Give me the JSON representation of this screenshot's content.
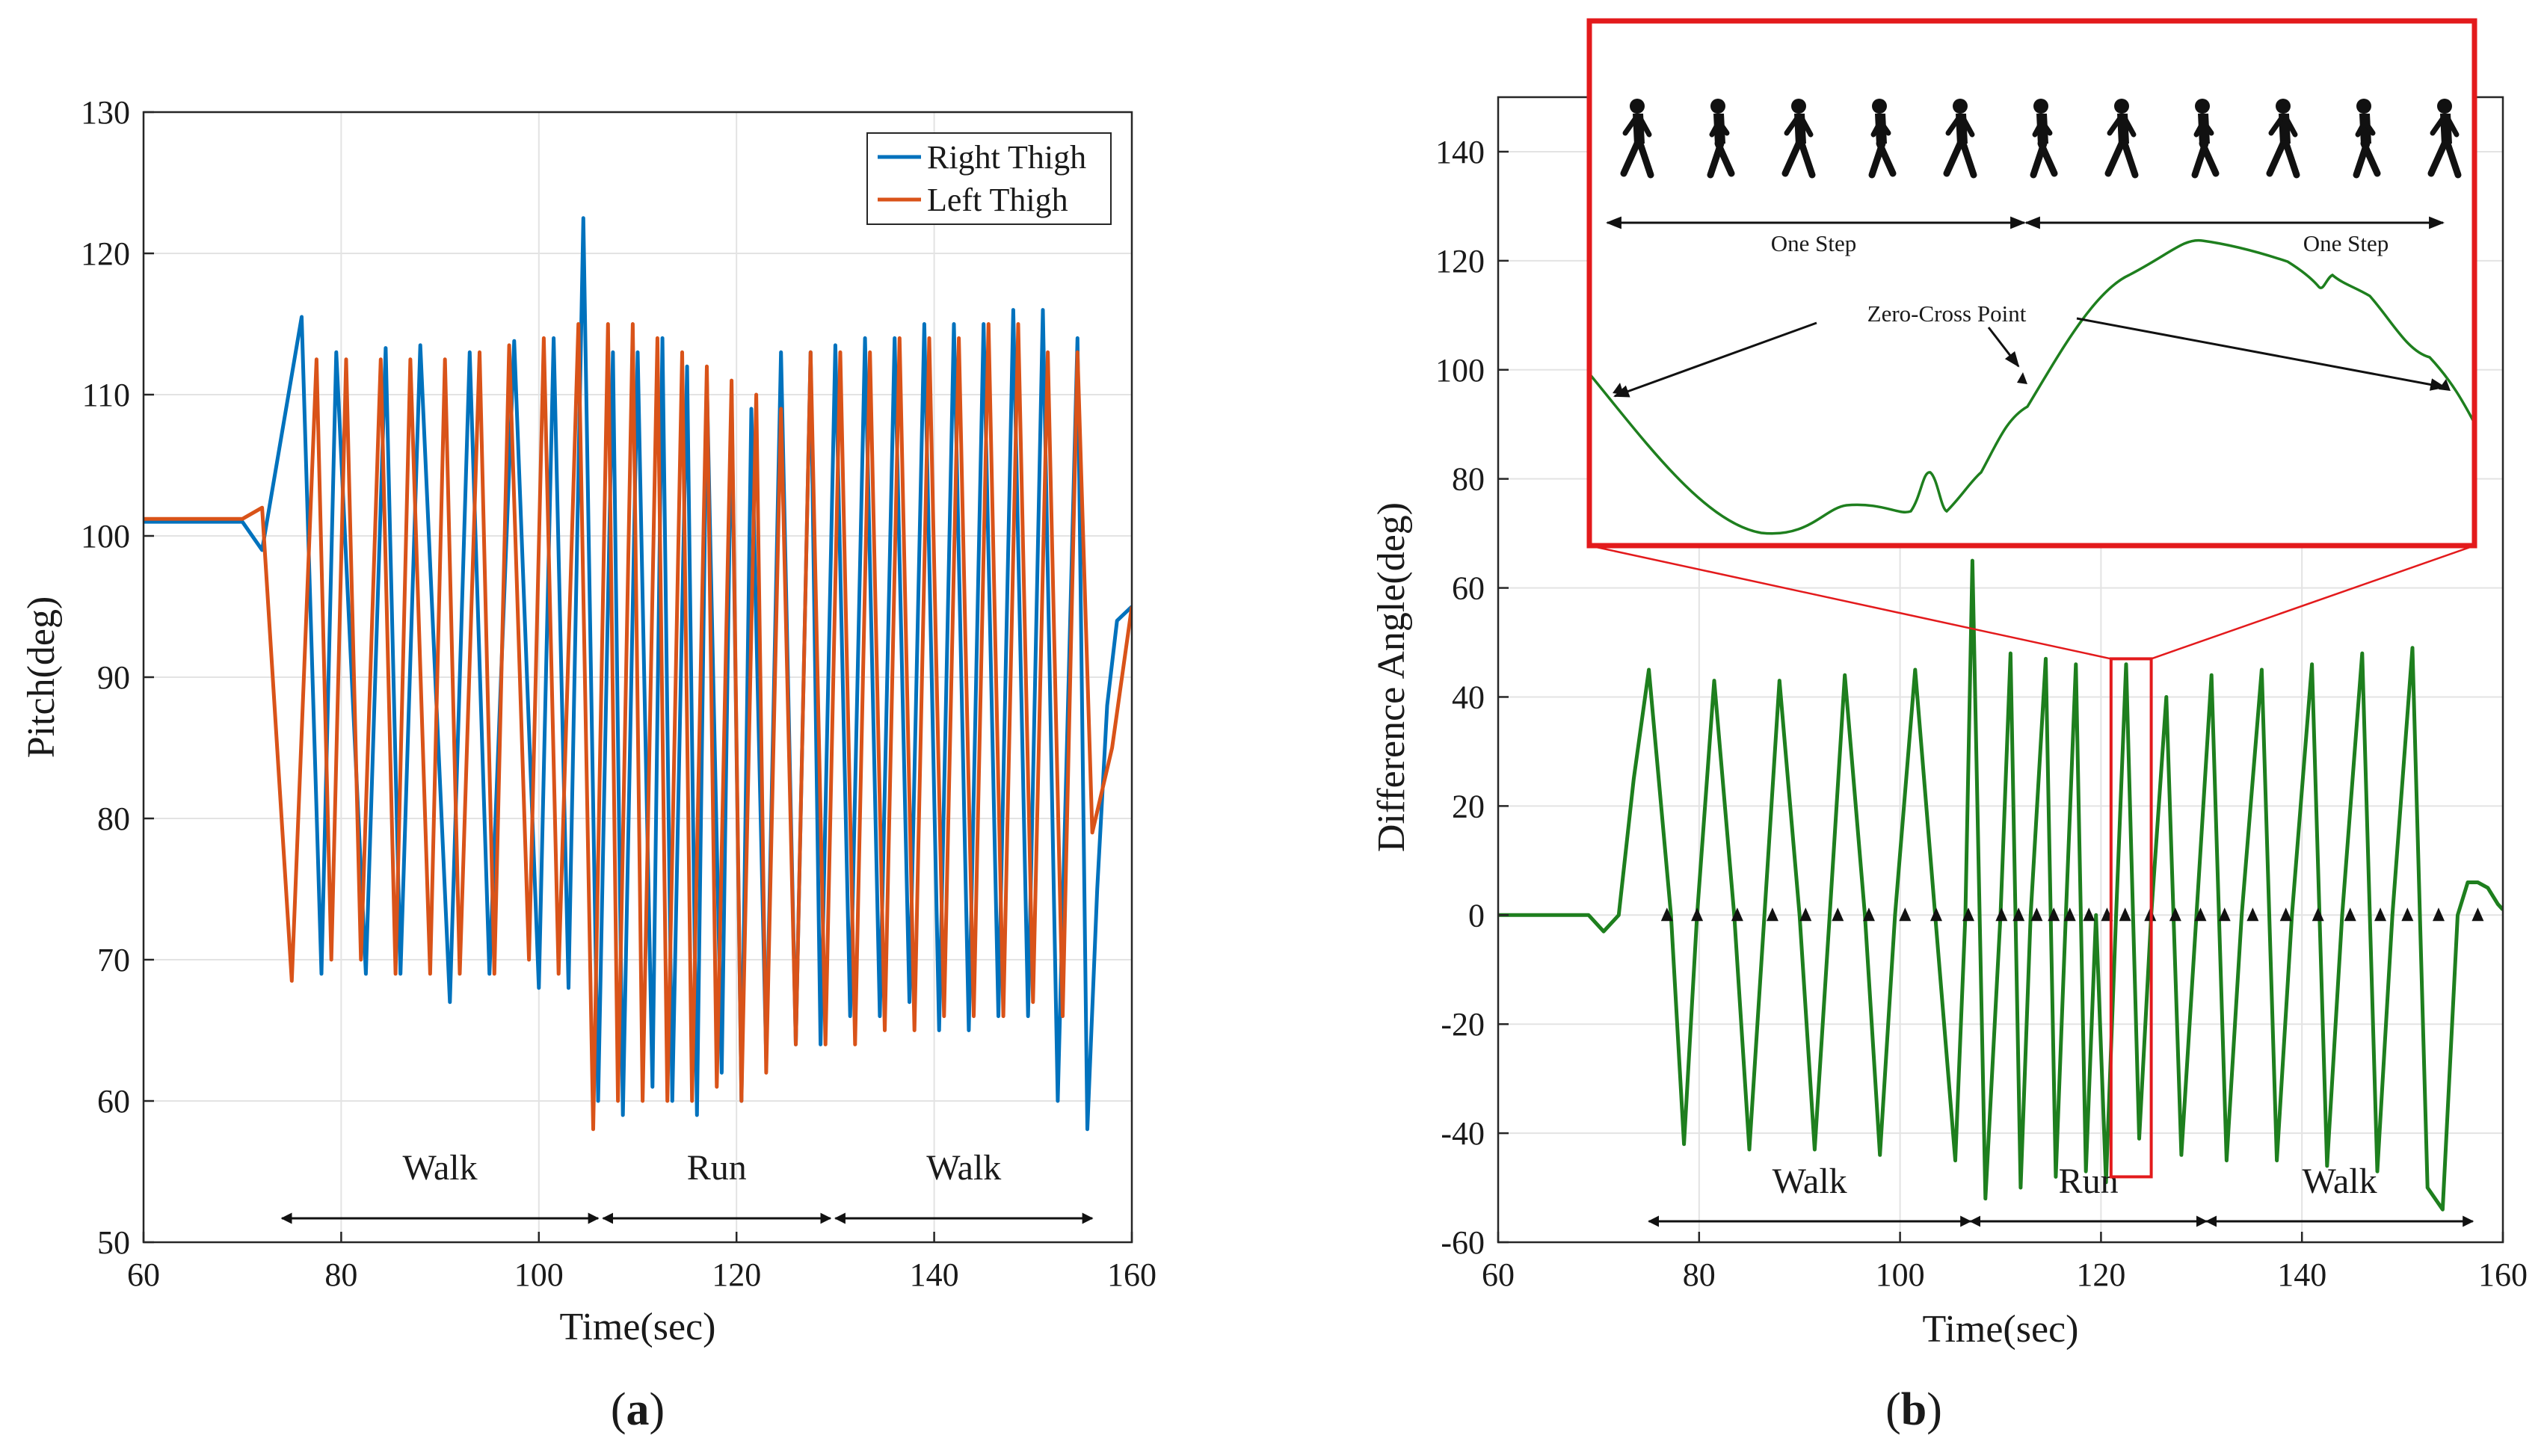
{
  "chart_data": [
    {
      "id": "a",
      "type": "line",
      "panel_label": {
        "open": "(",
        "letter": "a",
        "close": ")"
      },
      "xlabel": "Time(sec)",
      "ylabel": "Pitch(deg)",
      "xlim": [
        60,
        160
      ],
      "ylim": [
        50,
        130
      ],
      "xticks": [
        "60",
        "80",
        "100",
        "120",
        "140",
        "160"
      ],
      "yticks": [
        "50",
        "60",
        "70",
        "80",
        "90",
        "100",
        "110",
        "120",
        "130"
      ],
      "grid": true,
      "legend_position": "top-right",
      "series": [
        {
          "name": "Right Thigh",
          "color": "#0072BD",
          "x": [
            60,
            70,
            72,
            76,
            78,
            79.5,
            82.5,
            84.5,
            86,
            88,
            91,
            93,
            95,
            97.5,
            100,
            101.5,
            103,
            104.5,
            106,
            107.5,
            108.5,
            110,
            111.5,
            112.5,
            113.5,
            115,
            116,
            117,
            118.5,
            119.5,
            120.5,
            121.5,
            123,
            124.5,
            126,
            127.5,
            128.5,
            130,
            131.5,
            133,
            134.5,
            136,
            137.5,
            139,
            140.5,
            142,
            143.5,
            145,
            146.5,
            148,
            149.5,
            151,
            152.5,
            154.5,
            155.5,
            156.5,
            157.5,
            158.5,
            160
          ],
          "values": [
            101,
            101,
            99,
            115.5,
            69,
            113,
            69,
            113.3,
            69,
            113.5,
            67,
            113,
            69,
            113.8,
            68,
            114,
            68,
            122.5,
            60,
            113,
            59,
            113,
            61,
            114,
            60,
            112,
            59,
            111,
            62,
            110,
            60,
            109,
            63,
            113,
            64,
            113,
            64,
            113.5,
            66,
            114,
            66,
            114,
            67,
            115,
            65,
            115,
            65,
            115,
            66,
            116,
            66,
            116,
            60,
            114,
            58,
            75,
            88,
            94,
            95
          ]
        },
        {
          "name": "Left Thigh",
          "color": "#D95319",
          "x": [
            60,
            70,
            72,
            75,
            77.5,
            79,
            80.5,
            82,
            84,
            85.5,
            87,
            89,
            90.5,
            92,
            94,
            95.5,
            97,
            99,
            100.5,
            102,
            104,
            105.5,
            107,
            108,
            109.5,
            110.5,
            112,
            113,
            114.5,
            115.5,
            117,
            118,
            119.5,
            120.5,
            122,
            123,
            124.5,
            126,
            127.5,
            129,
            130.5,
            132,
            133.5,
            135,
            136.5,
            138,
            139.5,
            141,
            142.5,
            144,
            145.5,
            147,
            148.5,
            150,
            151.5,
            153,
            154.5,
            156,
            158,
            160
          ],
          "values": [
            101.2,
            101.2,
            102,
            68.5,
            112.5,
            70,
            112.5,
            70,
            112.5,
            69,
            112.5,
            69,
            112.5,
            69,
            113,
            69,
            113.5,
            70,
            114,
            69,
            115,
            58,
            115,
            60,
            115,
            60,
            114,
            60,
            113,
            60,
            112,
            61,
            111,
            60,
            110,
            62,
            109,
            64,
            113,
            64,
            113,
            64,
            113,
            65,
            114,
            65,
            114,
            66,
            114,
            66,
            115,
            66,
            115,
            67,
            113,
            66,
            113,
            79,
            85,
            95
          ]
        }
      ],
      "segments": [
        {
          "label": "Walk",
          "start": 74,
          "end": 106
        },
        {
          "label": "Run",
          "start": 106.5,
          "end": 129.5
        },
        {
          "label": "Walk",
          "start": 130,
          "end": 156
        }
      ]
    },
    {
      "id": "b",
      "type": "line",
      "panel_label": {
        "open": "(",
        "letter": "b",
        "close": ")"
      },
      "xlabel": "Time(sec)",
      "ylabel": "Difference Angle(deg)",
      "xlim": [
        60,
        160
      ],
      "ylim": [
        -60,
        150
      ],
      "xticks": [
        "60",
        "80",
        "100",
        "120",
        "140",
        "160"
      ],
      "yticks": [
        "-60",
        "-40",
        "-20",
        "0",
        "20",
        "40",
        "60",
        "80",
        "100",
        "120",
        "140"
      ],
      "grid": true,
      "series": [
        {
          "name": "Difference Angle",
          "color": "#1E7F1E",
          "x": [
            60,
            69,
            70.5,
            72,
            73.5,
            75,
            77.2,
            78.5,
            79.8,
            81.5,
            83.5,
            85,
            86.5,
            88,
            90,
            91.5,
            93,
            94.5,
            96.5,
            98,
            99.5,
            101.5,
            103.5,
            105.5,
            106.5,
            107.2,
            108.5,
            110,
            111,
            112,
            113,
            114.5,
            115.5,
            116.5,
            117.5,
            118.5,
            119.5,
            120.5,
            121.5,
            122.5,
            123.8,
            125,
            126.5,
            128,
            129.5,
            131,
            132.5,
            134,
            136,
            137.5,
            139,
            141,
            142.5,
            144,
            146,
            147.5,
            149,
            151,
            152.5,
            154,
            155.5,
            156.5,
            157.5,
            158.5,
            159.5,
            160
          ],
          "values": [
            0,
            0,
            -3,
            0,
            25,
            45,
            0,
            -42,
            0,
            43,
            0,
            -43,
            0,
            43,
            0,
            -43,
            0,
            44,
            0,
            -44,
            0,
            45,
            0,
            -45,
            0,
            65,
            -52,
            0,
            48,
            -50,
            0,
            47,
            -48,
            0,
            46,
            -47,
            0,
            -49,
            0,
            46,
            -41,
            0,
            40,
            -44,
            0,
            44,
            -45,
            0,
            45,
            -45,
            0,
            46,
            -46,
            0,
            48,
            -47,
            0,
            49,
            -50,
            -54,
            0,
            6,
            6,
            5,
            2,
            1
          ]
        }
      ],
      "zero_cross_markers": [
        76.8,
        79.8,
        83.8,
        87.3,
        90.6,
        93.8,
        96.9,
        100.5,
        103.6,
        106.8,
        110.1,
        111.8,
        113.6,
        115.3,
        116.9,
        118.8,
        120.6,
        122.4,
        124.9,
        127.4,
        129.9,
        132.3,
        135.1,
        138.4,
        141.6,
        144.8,
        147.8,
        150.5,
        153.6,
        157.5
      ],
      "segments": [
        {
          "label": "Walk",
          "start": 75,
          "end": 107
        },
        {
          "label": "Run",
          "start": 107,
          "end": 130.5
        },
        {
          "label": "Walk",
          "start": 130.5,
          "end": 157
        }
      ],
      "zoom_box": {
        "x": [
          121,
          125
        ],
        "y": [
          -48,
          47
        ],
        "color": "#E31A1C"
      },
      "inset": {
        "label_step_1": "One Step",
        "label_step_2": "One Step",
        "label_zero_cross": "Zero-Cross Point",
        "runner_count": 11
      }
    }
  ]
}
